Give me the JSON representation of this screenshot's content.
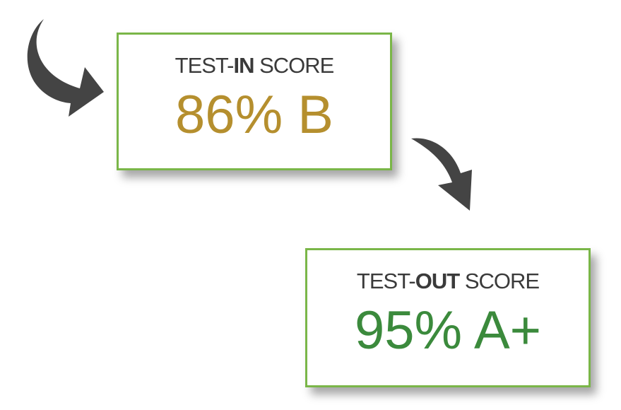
{
  "test_in": {
    "label_prefix": "TEST-",
    "label_bold": "IN",
    "label_suffix": " SCORE",
    "score": "86% B",
    "score_color": "#b58f2e"
  },
  "test_out": {
    "label_prefix": "TEST-",
    "label_bold": "OUT",
    "label_suffix": " SCORE",
    "score": "95% A+",
    "score_color": "#3b8a3c"
  },
  "colors": {
    "border": "#7ab648",
    "arrow": "#444444"
  },
  "icons": [
    "curved-arrow-icon",
    "curved-arrow-icon"
  ]
}
